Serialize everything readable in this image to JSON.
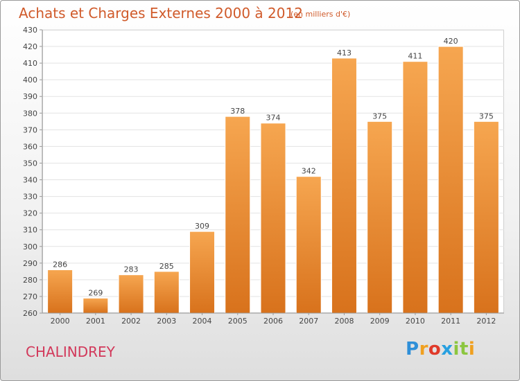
{
  "header": {
    "title": "Achats et Charges Externes 2000 à 2012",
    "subtitle": "(en milliers d'€)"
  },
  "footer": {
    "city": "CHALINDREY",
    "logo_text": "Proxiti",
    "logo_letters": [
      "P",
      "r",
      "o",
      "x",
      "i",
      "t",
      "i"
    ],
    "logo_colors": [
      "#2f8fd8",
      "#f0a020",
      "#e03a2a",
      "#28a0e0",
      "#8cc63f",
      "#8cc63f",
      "#f0a020"
    ]
  },
  "colors": {
    "bar_top": "#f6a650",
    "bar_bottom": "#d8721c",
    "accent_text": "#d05a2a"
  },
  "chart_data": {
    "type": "bar",
    "title": "Achats et Charges Externes 2000 à 2012",
    "subtitle": "(en milliers d'€)",
    "categories": [
      "2000",
      "2001",
      "2002",
      "2003",
      "2004",
      "2005",
      "2006",
      "2007",
      "2008",
      "2009",
      "2010",
      "2011",
      "2012"
    ],
    "values": [
      286,
      269,
      283,
      285,
      309,
      378,
      374,
      342,
      413,
      375,
      411,
      420,
      375
    ],
    "data_labels": [
      "286",
      "269",
      "283",
      "285",
      "309",
      "378",
      "374",
      "342",
      "413",
      "375",
      "411",
      "420",
      "375"
    ],
    "ylim": [
      260,
      430
    ],
    "yticks": [
      260,
      270,
      280,
      290,
      300,
      310,
      320,
      330,
      340,
      350,
      360,
      370,
      380,
      390,
      400,
      410,
      420,
      430
    ],
    "grid": true,
    "legend": "none"
  }
}
